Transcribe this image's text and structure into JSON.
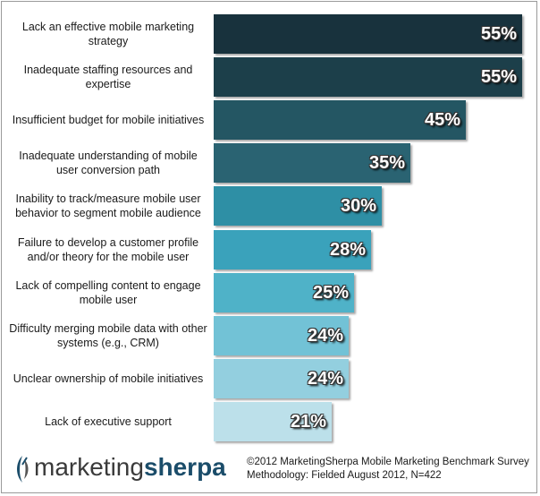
{
  "chart_data": {
    "type": "bar",
    "orientation": "horizontal",
    "categories": [
      "Lack an effective mobile marketing strategy",
      "Inadequate staffing resources and expertise",
      "Insufficient budget for mobile initiatives",
      "Inadequate understanding of mobile user conversion path",
      "Inability to track/measure mobile user behavior to segment mobile audience",
      "Failure to develop a customer profile and/or theory for the mobile user",
      "Lack of compelling content to engage mobile user",
      "Difficulty merging mobile data with other systems (e.g., CRM)",
      "Unclear ownership of mobile initiatives",
      "Lack of executive support"
    ],
    "values": [
      55,
      55,
      45,
      35,
      30,
      28,
      25,
      24,
      24,
      21
    ],
    "value_labels": [
      "55%",
      "55%",
      "45%",
      "35%",
      "30%",
      "28%",
      "25%",
      "24%",
      "24%",
      "21%"
    ],
    "bar_colors": [
      "#18323d",
      "#1c3f4a",
      "#245663",
      "#2a6372",
      "#2e8fa5",
      "#3aa2bb",
      "#4fb2c8",
      "#72c2d6",
      "#93cfdf",
      "#bce0ea"
    ],
    "xlim": [
      0,
      60
    ],
    "grid": false,
    "legend": "none"
  },
  "logo": {
    "part1": "marketing",
    "part2": "sherpa"
  },
  "source": {
    "line1": "©2012 MarketingSherpa Mobile Marketing Benchmark Survey",
    "line2": "Methodology: Fielded August 2012, N=422"
  }
}
